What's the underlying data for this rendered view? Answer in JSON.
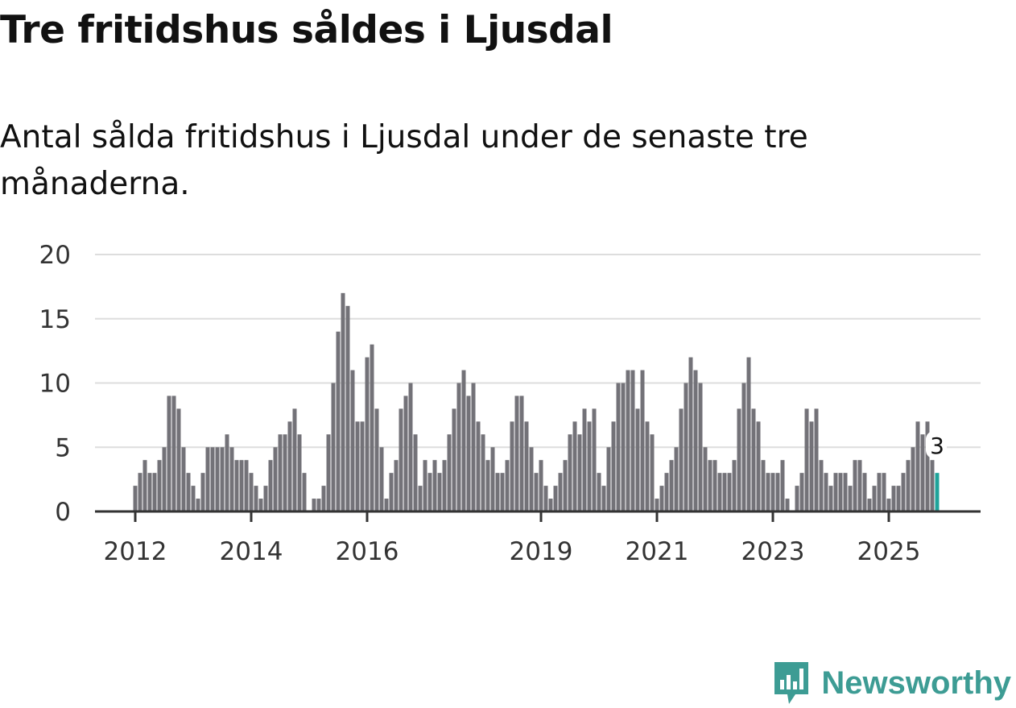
{
  "title": "Tre fritidshus såldes i Ljusdal",
  "subtitle": "Antal sålda fritidshus i Ljusdal under de senaste tre månaderna.",
  "brand": "Newsworthy",
  "colors": {
    "bar": "#737278",
    "highlight": "#1fa39a",
    "brand": "#3d9c94",
    "grid": "#dddddd",
    "axis": "#333333"
  },
  "chart_data": {
    "type": "bar",
    "title": "Tre fritidshus såldes i Ljusdal",
    "xlabel": "",
    "ylabel": "",
    "ylim": [
      0,
      20
    ],
    "y_ticks": [
      "0",
      "5",
      "10",
      "15",
      "20"
    ],
    "x_ticks": [
      {
        "label": "2012",
        "index": 0
      },
      {
        "label": "2014",
        "index": 24
      },
      {
        "label": "2016",
        "index": 48
      },
      {
        "label": "2019",
        "index": 84
      },
      {
        "label": "2021",
        "index": 108
      },
      {
        "label": "2023",
        "index": 132
      },
      {
        "label": "2025",
        "index": 156
      }
    ],
    "start": "2012-01",
    "frequency": "monthly",
    "values": [
      2,
      3,
      4,
      3,
      3,
      4,
      5,
      9,
      9,
      8,
      5,
      3,
      2,
      1,
      3,
      5,
      5,
      5,
      5,
      6,
      5,
      4,
      4,
      4,
      3,
      2,
      1,
      2,
      4,
      5,
      6,
      6,
      7,
      8,
      6,
      3,
      0,
      1,
      1,
      2,
      6,
      10,
      14,
      17,
      16,
      11,
      7,
      7,
      12,
      13,
      8,
      5,
      1,
      3,
      4,
      8,
      9,
      10,
      6,
      2,
      4,
      3,
      4,
      3,
      4,
      6,
      8,
      10,
      11,
      9,
      10,
      7,
      6,
      4,
      5,
      3,
      3,
      4,
      7,
      9,
      9,
      7,
      5,
      3,
      4,
      2,
      1,
      2,
      3,
      4,
      6,
      7,
      6,
      8,
      7,
      8,
      3,
      2,
      5,
      7,
      10,
      10,
      11,
      11,
      8,
      11,
      7,
      6,
      1,
      2,
      3,
      4,
      5,
      8,
      10,
      12,
      11,
      10,
      5,
      4,
      4,
      3,
      3,
      3,
      4,
      8,
      10,
      12,
      8,
      7,
      4,
      3,
      3,
      3,
      4,
      1,
      0,
      2,
      3,
      8,
      7,
      8,
      4,
      3,
      2,
      3,
      3,
      3,
      2,
      4,
      4,
      3,
      1,
      2,
      3,
      3,
      1,
      2,
      2,
      3,
      4,
      5,
      7,
      6,
      7,
      4,
      3
    ],
    "highlight_last": true,
    "data_label": "3",
    "grid": true
  }
}
